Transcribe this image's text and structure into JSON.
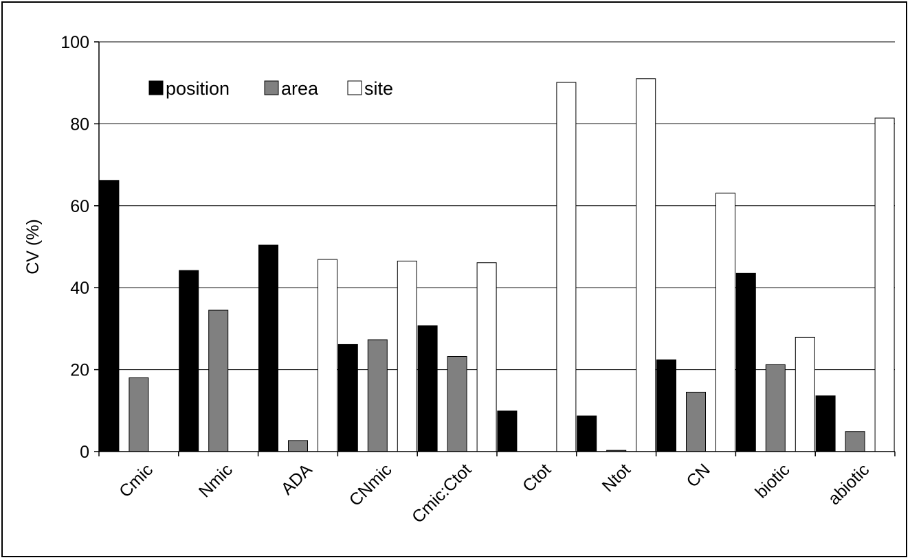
{
  "chart_data": {
    "type": "bar",
    "title": "",
    "xlabel": "",
    "ylabel": "CV (%)",
    "ylim": [
      0,
      100
    ],
    "yticks": [
      "0",
      "20",
      "40",
      "60",
      "80",
      "100"
    ],
    "grid": true,
    "legend_position": "top-left",
    "categories": [
      "Cmic",
      "Nmic",
      "ADA",
      "CNmic",
      "Cmic:Ctot",
      "Ctot",
      "Ntot",
      "CN",
      "biotic",
      "abiotic"
    ],
    "series": [
      {
        "name": "position",
        "color": "#000000",
        "values": [
          66.2,
          44.2,
          50.4,
          26.2,
          30.7,
          9.9,
          8.7,
          22.4,
          43.5,
          13.6
        ]
      },
      {
        "name": "area",
        "color": "#808080",
        "values": [
          18.0,
          34.5,
          2.7,
          27.3,
          23.2,
          0,
          0.3,
          14.5,
          21.2,
          4.9
        ]
      },
      {
        "name": "site",
        "color": "#ffffff",
        "values": [
          0,
          0,
          46.9,
          46.5,
          46.1,
          90.1,
          91.0,
          63.1,
          27.9,
          81.4
        ]
      }
    ]
  }
}
